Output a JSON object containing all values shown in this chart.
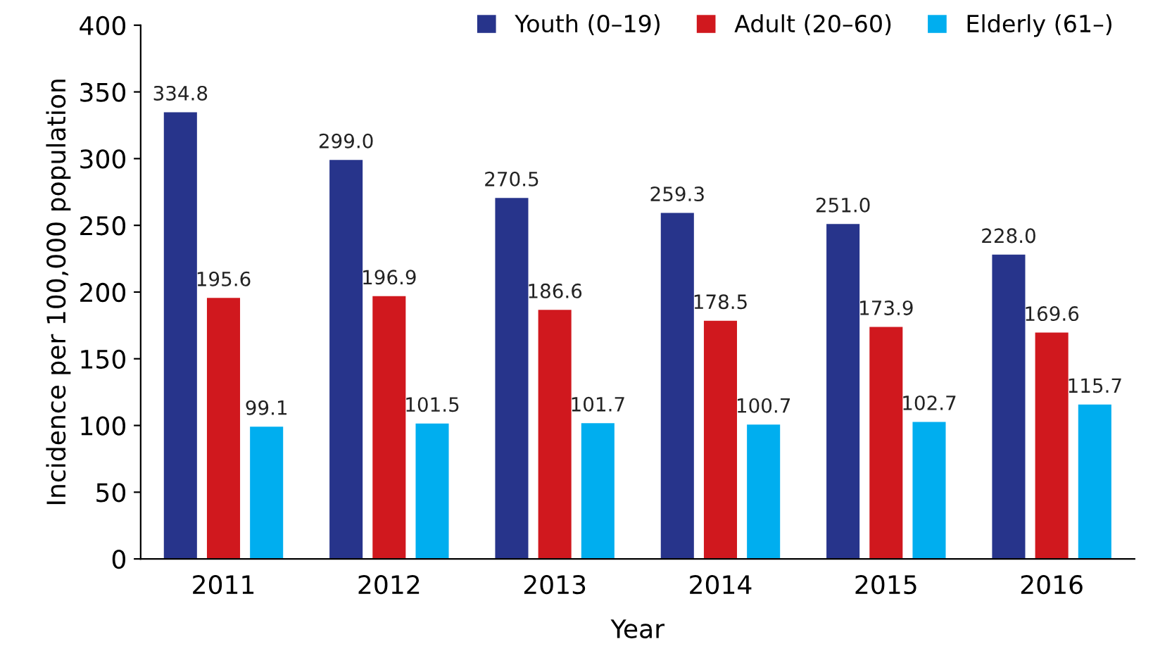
{
  "chart_data": {
    "type": "bar",
    "xlabel": "Year",
    "ylabel": "Incidence per 100,000 population",
    "categories": [
      "2011",
      "2012",
      "2013",
      "2014",
      "2015",
      "2016"
    ],
    "series": [
      {
        "name": "Youth (0–19)",
        "color": "#27348b",
        "values": [
          334.8,
          299.0,
          270.5,
          259.3,
          251.0,
          228.0
        ],
        "value_labels": [
          "334.8",
          "299.0",
          "270.5",
          "259.3",
          "251.0",
          "228.0"
        ]
      },
      {
        "name": "Adult (20–60)",
        "color": "#d0181e",
        "values": [
          195.6,
          196.9,
          186.6,
          178.5,
          173.9,
          169.6
        ],
        "value_labels": [
          "195.6",
          "196.9",
          "186.6",
          "178.5",
          "173.9",
          "169.6"
        ]
      },
      {
        "name": "Elderly (61–)",
        "color": "#00aeef",
        "values": [
          99.1,
          101.5,
          101.7,
          100.7,
          102.7,
          115.7
        ],
        "value_labels": [
          "99.1",
          "101.5",
          "101.7",
          "100.7",
          "102.7",
          "115.7"
        ]
      }
    ],
    "ylim": [
      0,
      400
    ],
    "yticks": [
      0,
      50,
      100,
      150,
      200,
      250,
      300,
      350,
      400
    ],
    "grid": false,
    "legend": "top right"
  }
}
